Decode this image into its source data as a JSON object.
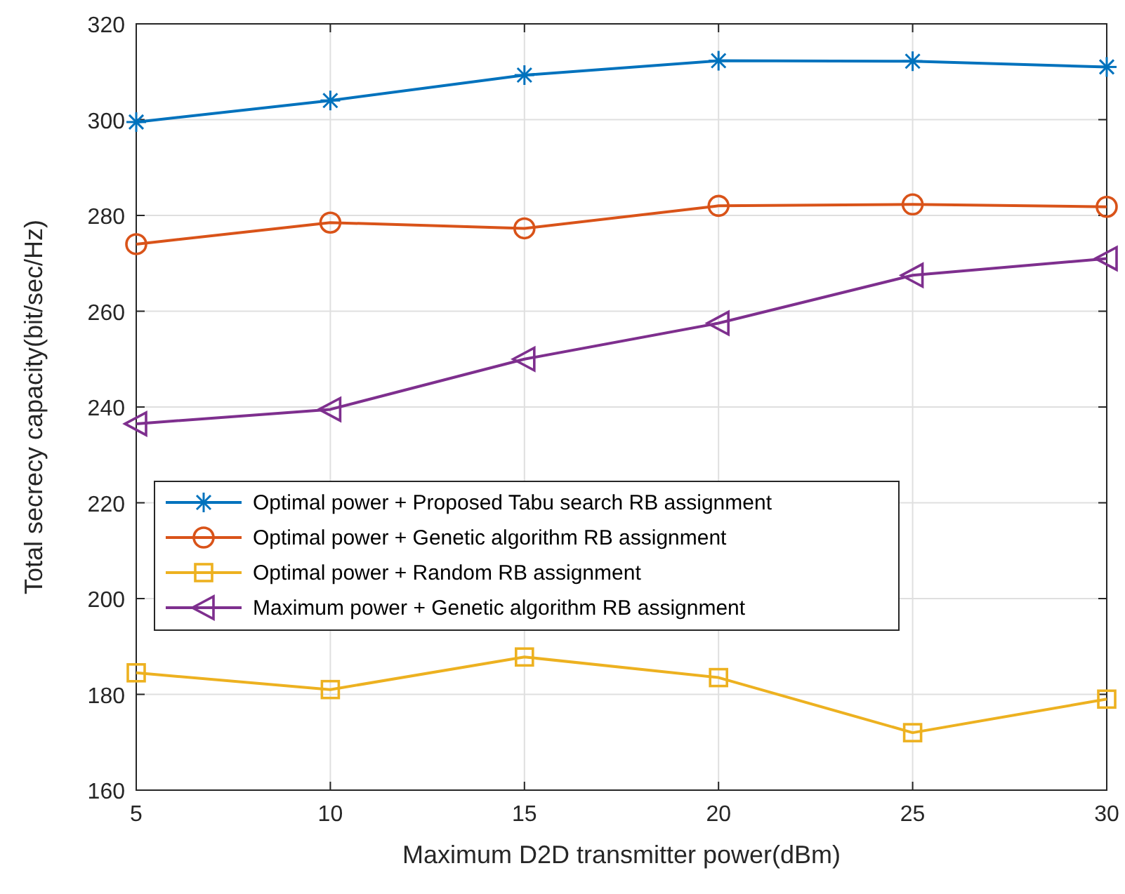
{
  "chart_data": {
    "type": "line",
    "xlabel": "Maximum D2D transmitter power(dBm)",
    "ylabel": "Total secrecy capacity(bit/sec/Hz)",
    "x": [
      5,
      10,
      15,
      20,
      25,
      30
    ],
    "xlim": [
      5,
      30
    ],
    "xticks": [
      5,
      10,
      15,
      20,
      25,
      30
    ],
    "ylim": [
      160,
      320
    ],
    "yticks": [
      160,
      180,
      200,
      220,
      240,
      260,
      280,
      300,
      320
    ],
    "grid": true,
    "legend": "center left",
    "series": [
      {
        "name": "Optimal power + Proposed Tabu search RB assignment",
        "color": "#0072bd",
        "marker": "cross",
        "values": [
          299.5,
          304,
          309.3,
          312.3,
          312.2,
          311
        ]
      },
      {
        "name": "Optimal power + Genetic algorithm RB assignment",
        "color": "#d95319",
        "marker": "circle",
        "values": [
          274,
          278.5,
          277.3,
          282,
          282.3,
          281.8
        ]
      },
      {
        "name": "Optimal power + Random RB assignment",
        "color": "#edb120",
        "marker": "square",
        "values": [
          184.5,
          181,
          187.8,
          183.5,
          172,
          179
        ]
      },
      {
        "name": "Maximum power + Genetic algorithm RB assignment",
        "color": "#7e2f8e",
        "marker": "triangle",
        "values": [
          236.5,
          239.5,
          250,
          257.5,
          267.5,
          271
        ]
      }
    ]
  }
}
